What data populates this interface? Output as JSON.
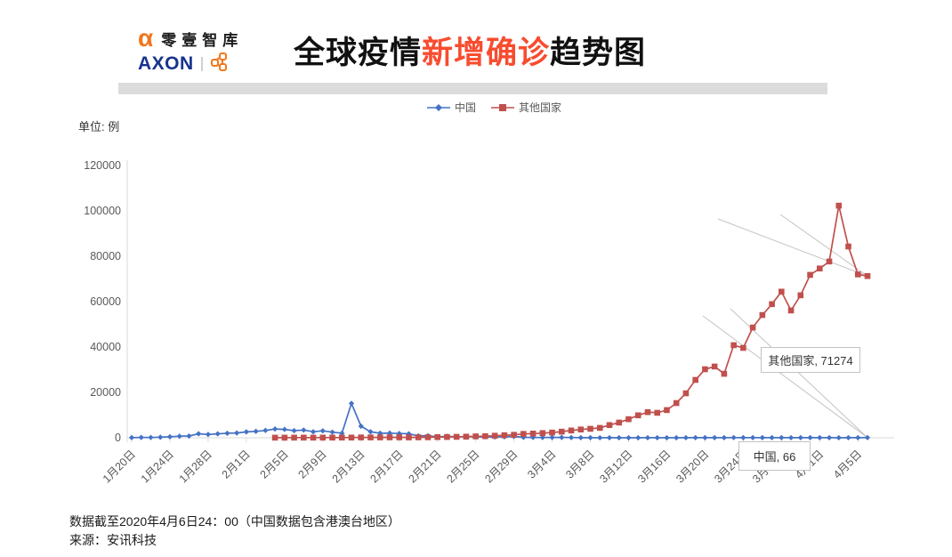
{
  "header": {
    "logo": {
      "alpha_glyph": "α",
      "name_cn": "零壹智库",
      "name_en": "AXON",
      "orange": "#f0761d",
      "blue": "#17338c"
    },
    "title": {
      "part1": "全球疫情",
      "part2": "新增确诊",
      "part3": "趋势图",
      "accent_color": "#f84c2f"
    }
  },
  "chart": {
    "unit_label": "单位: 例",
    "annotations": {
      "others": "其他国家, 71274",
      "china": "中国, 66"
    }
  },
  "chart_data": {
    "type": "line",
    "title": "全球疫情新增确诊趋势图",
    "ylabel": "单位: 例",
    "ylim": [
      0,
      120000
    ],
    "ytick_step": 20000,
    "xtick_every": 4,
    "grid": false,
    "legend_position": "top-center",
    "axis_color": "#d9d9d9",
    "tick_label_color": "#595959",
    "leader_line_color": "#c3c3c3",
    "dates": [
      "1月20日",
      "1月21日",
      "1月22日",
      "1月23日",
      "1月24日",
      "1月25日",
      "1月26日",
      "1月27日",
      "1月28日",
      "1月29日",
      "1月30日",
      "1月31日",
      "2月1日",
      "2月2日",
      "2月3日",
      "2月4日",
      "2月5日",
      "2月6日",
      "2月7日",
      "2月8日",
      "2月9日",
      "2月10日",
      "2月11日",
      "2月12日",
      "2月13日",
      "2月14日",
      "2月15日",
      "2月16日",
      "2月17日",
      "2月18日",
      "2月19日",
      "2月20日",
      "2月21日",
      "2月22日",
      "2月23日",
      "2月24日",
      "2月25日",
      "2月26日",
      "2月27日",
      "2月28日",
      "2月29日",
      "3月1日",
      "3月2日",
      "3月3日",
      "3月4日",
      "3月5日",
      "3月6日",
      "3月7日",
      "3月8日",
      "3月9日",
      "3月10日",
      "3月11日",
      "3月12日",
      "3月13日",
      "3月14日",
      "3月15日",
      "3月16日",
      "3月17日",
      "3月18日",
      "3月19日",
      "3月20日",
      "3月21日",
      "3月22日",
      "3月23日",
      "3月24日",
      "3月25日",
      "3月26日",
      "3月27日",
      "3月28日",
      "3月29日",
      "3月30日",
      "3月31日",
      "4月1日",
      "4月2日",
      "4月3日",
      "4月4日",
      "4月5日",
      "4月6日"
    ],
    "series": [
      {
        "name": "中国",
        "color": "#4472c4",
        "marker": "diamond",
        "values": [
          77,
          149,
          131,
          259,
          444,
          688,
          769,
          1771,
          1459,
          1737,
          1982,
          2102,
          2590,
          2829,
          3235,
          3887,
          3694,
          3143,
          3399,
          2656,
          3062,
          2478,
          2015,
          15152,
          5090,
          2641,
          2009,
          2048,
          1886,
          1749,
          820,
          889,
          397,
          648,
          409,
          508,
          406,
          433,
          327,
          427,
          573,
          202,
          125,
          119,
          139,
          143,
          99,
          44,
          40,
          19,
          24,
          15,
          8,
          11,
          20,
          16,
          21,
          13,
          34,
          39,
          41,
          46,
          39,
          78,
          47,
          67,
          55,
          54,
          45,
          31,
          48,
          36,
          35,
          31,
          19,
          30,
          39,
          66
        ]
      },
      {
        "name": "其他国家",
        "color": "#c0504d",
        "marker": "square",
        "values": [
          null,
          null,
          null,
          null,
          null,
          null,
          null,
          null,
          null,
          null,
          null,
          null,
          null,
          null,
          null,
          50,
          55,
          60,
          65,
          60,
          70,
          80,
          90,
          100,
          150,
          160,
          170,
          180,
          190,
          150,
          200,
          220,
          300,
          350,
          420,
          500,
          620,
          700,
          900,
          1100,
          1300,
          1700,
          1850,
          2050,
          2300,
          2700,
          3200,
          3650,
          3950,
          4350,
          5600,
          6700,
          8200,
          9900,
          11300,
          11000,
          12200,
          15300,
          19600,
          25500,
          30200,
          31400,
          28200,
          40800,
          39600,
          48600,
          54100,
          58900,
          64400,
          56100,
          62800,
          71800,
          74600,
          77700,
          102300,
          84300,
          72000,
          71274
        ]
      }
    ],
    "data_labels": [
      {
        "series": "其他国家",
        "value": 71274,
        "text": "其他国家, 71274"
      },
      {
        "series": "中国",
        "value": 66,
        "text": "中国, 66"
      }
    ]
  },
  "footer": {
    "line1": "数据截至2020年4月6日24：00（中国数据包含港澳台地区）",
    "line2": "来源：安讯科技"
  }
}
